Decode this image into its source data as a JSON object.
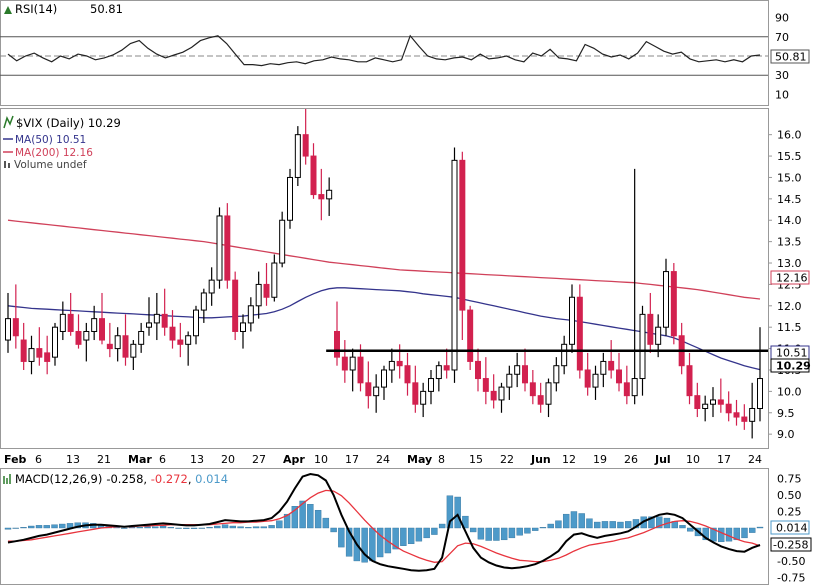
{
  "colors": {
    "up": "#ffffff",
    "down": "#d2214f",
    "candle_outline": "#000000",
    "ma50": "#34348c",
    "ma200": "#d0415a",
    "macd_line": "#000000",
    "signal_line": "#e8343d",
    "histogram": "#4d9ac9",
    "rsi_line": "#222222",
    "support_line": "#000000"
  },
  "chart_data": [
    {
      "type": "line",
      "panel": "rsi",
      "label": "RSI(14)",
      "value_label": "50.81",
      "ylim": [
        0,
        100
      ],
      "y_ticks": [
        "90",
        "70",
        "50",
        "30",
        "10"
      ],
      "overbought": 70,
      "oversold": 30,
      "center": 50,
      "current_value_box": "50.81",
      "values": [
        52,
        45,
        50,
        53,
        48,
        44,
        50,
        47,
        52,
        50,
        46,
        48,
        51,
        56,
        63,
        66,
        58,
        52,
        48,
        51,
        54,
        59,
        66,
        69,
        71,
        63,
        52,
        41,
        41,
        40,
        42,
        41,
        43,
        44,
        42,
        45,
        46,
        49,
        47,
        46,
        44,
        44,
        48,
        46,
        44,
        46,
        71,
        60,
        50,
        47,
        46,
        48,
        49,
        46,
        52,
        47,
        48,
        50,
        46,
        44,
        53,
        50,
        57,
        48,
        47,
        45,
        62,
        58,
        52,
        49,
        51,
        47,
        53,
        65,
        60,
        55,
        52,
        54,
        47,
        44,
        45,
        46,
        44,
        46,
        44,
        50,
        51
      ]
    },
    {
      "type": "candlestick",
      "panel": "price",
      "title": "$VIX (Daily) 10.29",
      "legend": [
        "MA(50) 10.51",
        "MA(200) 12.16",
        "Volume undef"
      ],
      "ylim": [
        8.7,
        16.6
      ],
      "y_ticks": [
        "16.0",
        "15.5",
        "15.0",
        "14.5",
        "14.0",
        "13.5",
        "13.0",
        "12.5",
        "12.0",
        "11.5",
        "11.0",
        "10.5",
        "10.0",
        "9.5",
        "9.0"
      ],
      "x_labels": [
        "Feb",
        "6",
        "13",
        "21",
        "Mar",
        "6",
        "13",
        "20",
        "27",
        "Apr",
        "10",
        "17",
        "24",
        "May",
        "8",
        "15",
        "22",
        "Jun",
        "12",
        "19",
        "26",
        "Jul",
        "10",
        "17",
        "24"
      ],
      "bold_x_labels": [
        "Feb",
        "Mar",
        "Apr",
        "May",
        "Jun",
        "Jul"
      ],
      "current_value_boxes": {
        "ma200": "12.16",
        "ma50": "10.51",
        "close": "10.29"
      },
      "support_level": 10.95,
      "support_start_index": 41,
      "ohlc": [
        [
          11.2,
          12.3,
          10.9,
          11.7
        ],
        [
          11.7,
          12.5,
          11.0,
          11.3
        ],
        [
          11.2,
          11.6,
          10.5,
          10.7
        ],
        [
          10.7,
          11.3,
          10.4,
          11.0
        ],
        [
          11.0,
          11.5,
          10.6,
          10.8
        ],
        [
          10.9,
          11.3,
          10.4,
          10.7
        ],
        [
          10.8,
          11.6,
          10.6,
          11.5
        ],
        [
          11.4,
          12.1,
          11.2,
          11.8
        ],
        [
          11.8,
          12.3,
          11.3,
          11.4
        ],
        [
          11.4,
          11.8,
          11.0,
          11.1
        ],
        [
          11.2,
          11.6,
          10.7,
          11.4
        ],
        [
          11.4,
          12.0,
          11.2,
          11.7
        ],
        [
          11.7,
          12.3,
          11.1,
          11.2
        ],
        [
          11.1,
          11.6,
          10.8,
          11.0
        ],
        [
          11.0,
          11.5,
          10.7,
          11.3
        ],
        [
          11.3,
          11.8,
          10.6,
          10.8
        ],
        [
          10.8,
          11.2,
          10.5,
          11.1
        ],
        [
          11.1,
          11.6,
          10.9,
          11.4
        ],
        [
          11.5,
          12.2,
          11.3,
          11.6
        ],
        [
          11.6,
          12.3,
          11.2,
          11.8
        ],
        [
          11.8,
          12.4,
          11.3,
          11.5
        ],
        [
          11.5,
          11.9,
          11.0,
          11.2
        ],
        [
          11.2,
          11.6,
          10.8,
          11.1
        ],
        [
          11.1,
          11.4,
          10.6,
          11.3
        ],
        [
          11.3,
          12.0,
          11.1,
          11.9
        ],
        [
          11.9,
          12.4,
          11.6,
          12.3
        ],
        [
          12.3,
          12.9,
          12.0,
          12.6
        ],
        [
          12.6,
          14.3,
          12.4,
          14.1
        ],
        [
          14.1,
          14.4,
          12.4,
          12.6
        ],
        [
          12.6,
          12.8,
          11.2,
          11.4
        ],
        [
          11.4,
          11.8,
          11.0,
          11.6
        ],
        [
          11.6,
          12.2,
          11.4,
          12.0
        ],
        [
          12.0,
          12.8,
          11.7,
          12.5
        ],
        [
          12.5,
          13.0,
          12.0,
          12.2
        ],
        [
          12.2,
          13.2,
          12.1,
          13.0
        ],
        [
          13.0,
          14.2,
          12.9,
          14.0
        ],
        [
          14.0,
          15.2,
          13.8,
          15.0
        ],
        [
          15.0,
          16.2,
          14.8,
          16.0
        ],
        [
          16.0,
          16.6,
          15.3,
          15.5
        ],
        [
          15.5,
          15.8,
          14.5,
          14.6
        ],
        [
          14.6,
          15.2,
          14.0,
          14.5
        ],
        [
          14.5,
          15.0,
          14.1,
          14.7
        ],
        [
          11.4,
          12.1,
          10.6,
          10.8
        ],
        [
          10.8,
          11.2,
          10.2,
          10.5
        ],
        [
          10.5,
          11.0,
          10.0,
          10.8
        ],
        [
          10.8,
          11.1,
          10.0,
          10.2
        ],
        [
          10.2,
          10.7,
          9.6,
          9.9
        ],
        [
          9.9,
          10.4,
          9.5,
          10.1
        ],
        [
          10.1,
          10.6,
          9.8,
          10.5
        ],
        [
          10.5,
          11.0,
          10.2,
          10.7
        ],
        [
          10.7,
          11.1,
          10.3,
          10.6
        ],
        [
          10.6,
          10.9,
          9.9,
          10.2
        ],
        [
          10.2,
          10.6,
          9.5,
          9.7
        ],
        [
          9.7,
          10.2,
          9.4,
          10.0
        ],
        [
          10.0,
          10.5,
          9.7,
          10.3
        ],
        [
          10.3,
          10.7,
          10.0,
          10.6
        ],
        [
          10.6,
          11.0,
          10.3,
          10.5
        ],
        [
          10.5,
          15.7,
          10.2,
          15.4
        ],
        [
          15.4,
          15.6,
          11.2,
          11.9
        ],
        [
          11.9,
          12.0,
          10.5,
          10.7
        ],
        [
          10.7,
          11.0,
          10.0,
          10.3
        ],
        [
          10.3,
          10.8,
          9.7,
          10.0
        ],
        [
          10.0,
          10.4,
          9.6,
          9.8
        ],
        [
          9.8,
          10.2,
          9.5,
          10.1
        ],
        [
          10.1,
          10.6,
          9.8,
          10.4
        ],
        [
          10.4,
          10.9,
          10.1,
          10.6
        ],
        [
          10.6,
          11.0,
          10.0,
          10.2
        ],
        [
          10.2,
          10.5,
          9.7,
          9.9
        ],
        [
          9.9,
          10.2,
          9.5,
          9.7
        ],
        [
          9.7,
          10.3,
          9.4,
          10.2
        ],
        [
          10.2,
          10.8,
          10.0,
          10.6
        ],
        [
          10.6,
          11.3,
          10.4,
          11.1
        ],
        [
          11.1,
          12.5,
          10.9,
          12.2
        ],
        [
          12.2,
          12.5,
          10.3,
          10.5
        ],
        [
          10.5,
          10.9,
          9.9,
          10.1
        ],
        [
          10.1,
          10.6,
          9.8,
          10.4
        ],
        [
          10.4,
          10.9,
          10.1,
          10.7
        ],
        [
          10.7,
          11.2,
          10.3,
          10.5
        ],
        [
          10.5,
          10.9,
          10.0,
          10.2
        ],
        [
          10.2,
          10.6,
          9.7,
          9.9
        ],
        [
          9.9,
          15.2,
          9.7,
          10.3
        ],
        [
          10.3,
          12.0,
          9.9,
          11.8
        ],
        [
          11.8,
          12.3,
          10.9,
          11.1
        ],
        [
          11.1,
          11.8,
          10.8,
          11.5
        ],
        [
          11.5,
          13.1,
          11.3,
          12.8
        ],
        [
          12.8,
          13.0,
          11.1,
          11.3
        ],
        [
          11.3,
          11.6,
          10.4,
          10.6
        ],
        [
          10.6,
          10.9,
          9.7,
          9.9
        ],
        [
          9.9,
          10.2,
          9.4,
          9.6
        ],
        [
          9.6,
          9.9,
          9.3,
          9.7
        ],
        [
          9.7,
          10.1,
          9.4,
          9.8
        ],
        [
          9.8,
          10.3,
          9.5,
          9.7
        ],
        [
          9.7,
          10.0,
          9.3,
          9.5
        ],
        [
          9.5,
          9.8,
          9.2,
          9.4
        ],
        [
          9.4,
          9.7,
          9.1,
          9.3
        ],
        [
          9.3,
          10.2,
          8.9,
          9.6
        ],
        [
          9.6,
          11.5,
          9.3,
          10.3
        ]
      ],
      "ma50": [
        12.0,
        11.98,
        11.96,
        11.94,
        11.93,
        11.92,
        11.91,
        11.9,
        11.89,
        11.88,
        11.87,
        11.86,
        11.85,
        11.84,
        11.83,
        11.82,
        11.81,
        11.8,
        11.79,
        11.78,
        11.77,
        11.76,
        11.75,
        11.74,
        11.73,
        11.72,
        11.72,
        11.73,
        11.74,
        11.75,
        11.76,
        11.78,
        11.8,
        11.82,
        11.86,
        11.92,
        12.0,
        12.1,
        12.2,
        12.28,
        12.35,
        12.4,
        12.42,
        12.42,
        12.41,
        12.4,
        12.39,
        12.38,
        12.37,
        12.36,
        12.35,
        12.33,
        12.31,
        12.28,
        12.26,
        12.24,
        12.22,
        12.2,
        12.16,
        12.12,
        12.08,
        12.04,
        12.0,
        11.96,
        11.92,
        11.88,
        11.84,
        11.8,
        11.76,
        11.73,
        11.7,
        11.68,
        11.66,
        11.63,
        11.6,
        11.57,
        11.54,
        11.51,
        11.48,
        11.45,
        11.42,
        11.39,
        11.36,
        11.33,
        11.3,
        11.25,
        11.18,
        11.1,
        11.02,
        10.94,
        10.86,
        10.78,
        10.72,
        10.66,
        10.6,
        10.55,
        10.51
      ],
      "ma200": [
        14.0,
        13.98,
        13.96,
        13.94,
        13.92,
        13.9,
        13.88,
        13.86,
        13.84,
        13.82,
        13.8,
        13.78,
        13.76,
        13.74,
        13.72,
        13.7,
        13.68,
        13.66,
        13.64,
        13.62,
        13.6,
        13.58,
        13.56,
        13.54,
        13.52,
        13.5,
        13.47,
        13.44,
        13.41,
        13.38,
        13.35,
        13.32,
        13.29,
        13.26,
        13.23,
        13.2,
        13.17,
        13.14,
        13.11,
        13.08,
        13.05,
        13.02,
        13.0,
        12.98,
        12.96,
        12.94,
        12.92,
        12.9,
        12.88,
        12.86,
        12.84,
        12.83,
        12.82,
        12.81,
        12.8,
        12.79,
        12.78,
        12.77,
        12.76,
        12.75,
        12.74,
        12.73,
        12.72,
        12.71,
        12.7,
        12.69,
        12.68,
        12.67,
        12.66,
        12.65,
        12.64,
        12.63,
        12.62,
        12.61,
        12.6,
        12.59,
        12.58,
        12.57,
        12.56,
        12.55,
        12.54,
        12.52,
        12.5,
        12.48,
        12.46,
        12.44,
        12.42,
        12.4,
        12.38,
        12.35,
        12.32,
        12.29,
        12.26,
        12.23,
        12.2,
        12.18,
        12.16
      ]
    },
    {
      "type": "bar",
      "panel": "macd",
      "label": "MACD(12,26,9)",
      "macd_value": "-0.258",
      "signal_value": "-0.272",
      "hist_value": "0.014",
      "ylim": [
        -0.85,
        0.88
      ],
      "y_ticks": [
        "0.75",
        "0.50",
        "0.25",
        "0.00",
        "-0.25",
        "-0.50",
        "-0.75"
      ],
      "current_value_boxes": {
        "hist": "0.014",
        "macd": "-0.258"
      },
      "macd": [
        -0.22,
        -0.2,
        -0.18,
        -0.15,
        -0.12,
        -0.1,
        -0.07,
        -0.04,
        -0.01,
        0.02,
        0.04,
        0.05,
        0.05,
        0.04,
        0.03,
        0.02,
        0.03,
        0.04,
        0.05,
        0.06,
        0.07,
        0.06,
        0.05,
        0.04,
        0.04,
        0.05,
        0.06,
        0.09,
        0.12,
        0.11,
        0.1,
        0.1,
        0.11,
        0.12,
        0.15,
        0.25,
        0.4,
        0.6,
        0.78,
        0.82,
        0.8,
        0.72,
        0.5,
        0.2,
        -0.05,
        -0.25,
        -0.4,
        -0.5,
        -0.55,
        -0.58,
        -0.6,
        -0.62,
        -0.64,
        -0.65,
        -0.64,
        -0.62,
        -0.45,
        0.1,
        0.2,
        -0.05,
        -0.3,
        -0.45,
        -0.52,
        -0.57,
        -0.6,
        -0.61,
        -0.6,
        -0.58,
        -0.55,
        -0.5,
        -0.43,
        -0.35,
        -0.2,
        -0.1,
        -0.08,
        -0.12,
        -0.15,
        -0.12,
        -0.1,
        -0.08,
        -0.05,
        0.02,
        0.1,
        0.15,
        0.2,
        0.22,
        0.2,
        0.15,
        0.05,
        -0.05,
        -0.15,
        -0.22,
        -0.28,
        -0.32,
        -0.35,
        -0.36,
        -0.3,
        -0.258
      ],
      "signal": [
        -0.2,
        -0.2,
        -0.19,
        -0.18,
        -0.16,
        -0.14,
        -0.12,
        -0.1,
        -0.08,
        -0.06,
        -0.04,
        -0.02,
        0.0,
        0.01,
        0.02,
        0.02,
        0.02,
        0.03,
        0.03,
        0.04,
        0.04,
        0.05,
        0.05,
        0.05,
        0.05,
        0.05,
        0.05,
        0.06,
        0.07,
        0.08,
        0.08,
        0.09,
        0.09,
        0.1,
        0.11,
        0.14,
        0.19,
        0.27,
        0.37,
        0.46,
        0.53,
        0.57,
        0.56,
        0.49,
        0.38,
        0.25,
        0.12,
        0.0,
        -0.11,
        -0.2,
        -0.28,
        -0.35,
        -0.4,
        -0.45,
        -0.49,
        -0.52,
        -0.51,
        -0.39,
        -0.27,
        -0.23,
        -0.24,
        -0.28,
        -0.33,
        -0.38,
        -0.42,
        -0.46,
        -0.49,
        -0.5,
        -0.51,
        -0.51,
        -0.49,
        -0.46,
        -0.41,
        -0.35,
        -0.3,
        -0.26,
        -0.24,
        -0.22,
        -0.2,
        -0.17,
        -0.15,
        -0.11,
        -0.07,
        -0.02,
        0.03,
        0.07,
        0.1,
        0.11,
        0.1,
        0.07,
        0.03,
        -0.02,
        -0.07,
        -0.12,
        -0.17,
        -0.21,
        -0.23,
        -0.272
      ]
    }
  ]
}
